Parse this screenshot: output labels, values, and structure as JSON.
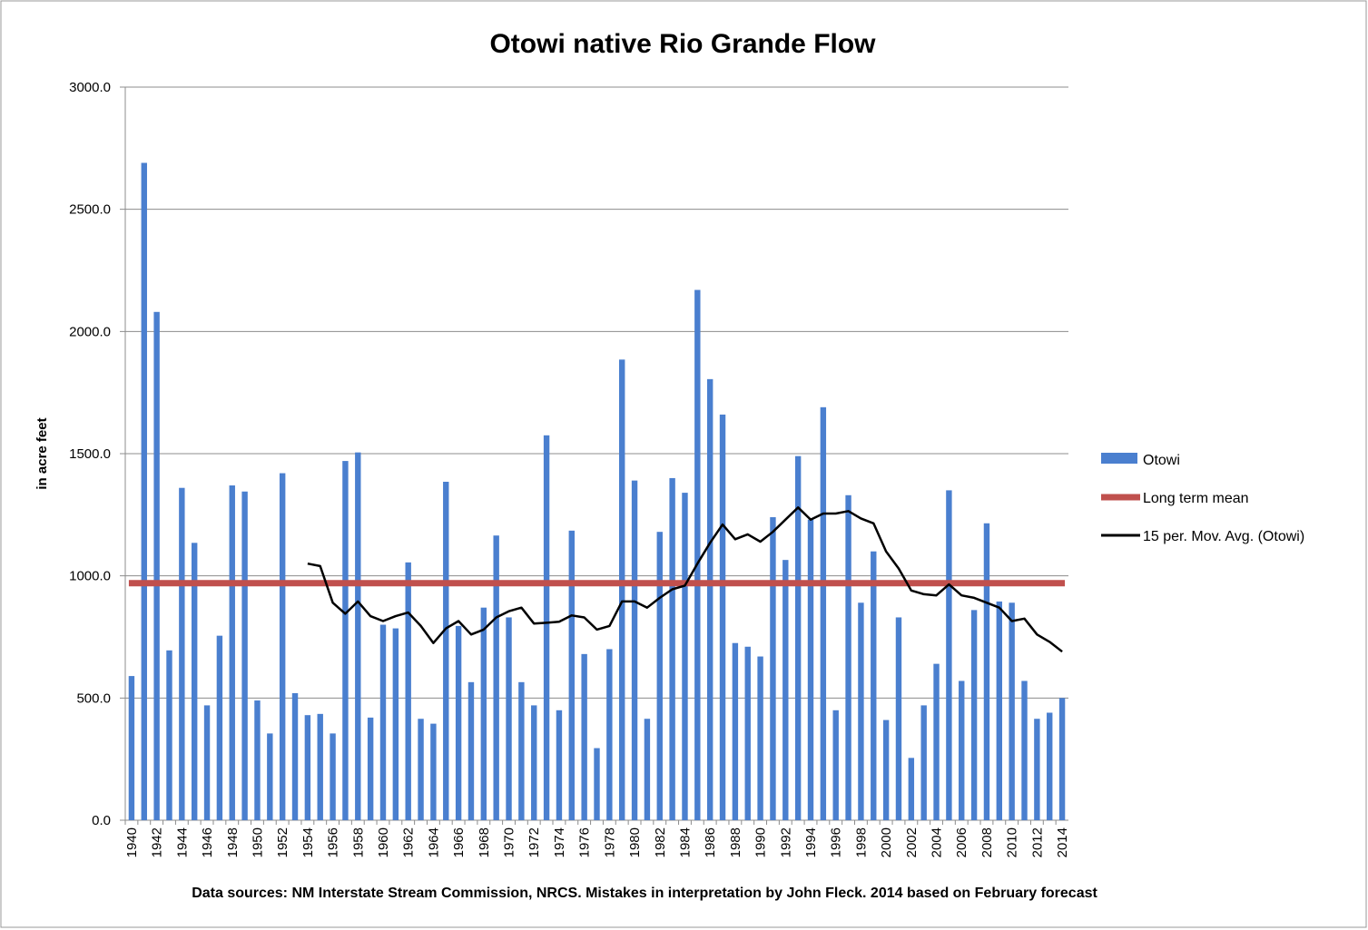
{
  "chart_data": {
    "type": "bar",
    "title": "Otowi native Rio Grande Flow",
    "ylabel": "in acre feet",
    "footnote": "Data sources: NM Interstate Stream Commission, NRCS. Mistakes in interpretation by John Fleck. 2014 based on February forecast",
    "categories": [
      "1940",
      null,
      "1942",
      null,
      "1944",
      null,
      "1946",
      null,
      "1948",
      null,
      "1950",
      null,
      "1952",
      null,
      "1954",
      null,
      "1956",
      null,
      "1958",
      null,
      "1960",
      null,
      "1962",
      null,
      "1964",
      null,
      "1966",
      null,
      "1968",
      null,
      "1970",
      null,
      "1972",
      null,
      "1974",
      null,
      "1976",
      null,
      "1978",
      null,
      "1980",
      null,
      "1982",
      null,
      "1984",
      null,
      "1986",
      null,
      "1988",
      null,
      "1990",
      null,
      "1992",
      null,
      "1994",
      null,
      "1996",
      null,
      "1998",
      null,
      "2000",
      null,
      "2002",
      null,
      "2004",
      null,
      "2006",
      null,
      "2008",
      null,
      "2010",
      null,
      "2012",
      null,
      "2014"
    ],
    "series": [
      {
        "name": "Otowi",
        "type": "bar",
        "color": "#4a7fcf",
        "values": [
          590,
          2690,
          2080,
          695,
          1360,
          1135,
          470,
          755,
          1370,
          1345,
          490,
          355,
          1420,
          520,
          430,
          435,
          355,
          1470,
          1505,
          420,
          800,
          785,
          1055,
          415,
          395,
          1385,
          795,
          565,
          870,
          1165,
          830,
          565,
          470,
          1575,
          450,
          1185,
          680,
          295,
          700,
          1885,
          1390,
          415,
          1180,
          1400,
          1340,
          2170,
          1805,
          1660,
          725,
          710,
          670,
          1240,
          1065,
          1490,
          1230,
          1690,
          450,
          1330,
          890,
          1100,
          410,
          830,
          255,
          470,
          640,
          1350,
          570,
          860,
          1215,
          895,
          890,
          570,
          415,
          440,
          500
        ]
      },
      {
        "name": "Long term mean",
        "type": "hline",
        "color": "#c0504d",
        "value": 970
      },
      {
        "name": "15 per. Mov. Avg. (Otowi)",
        "type": "line",
        "color": "#000000",
        "values": [
          null,
          null,
          null,
          null,
          null,
          null,
          null,
          null,
          null,
          null,
          null,
          null,
          null,
          null,
          1050,
          1040,
          890,
          845,
          895,
          835,
          815,
          835,
          850,
          795,
          725,
          785,
          815,
          760,
          780,
          830,
          855,
          870,
          805,
          808,
          812,
          838,
          830,
          780,
          795,
          895,
          895,
          870,
          910,
          945,
          960,
          1050,
          1135,
          1210,
          1150,
          1170,
          1140,
          1180,
          1230,
          1280,
          1230,
          1255,
          1255,
          1265,
          1235,
          1215,
          1100,
          1030,
          940,
          925,
          920,
          965,
          920,
          910,
          890,
          870,
          815,
          825,
          760,
          730,
          690
        ]
      }
    ],
    "ylim": [
      0,
      3000
    ],
    "yticks": [
      {
        "value": 0,
        "label": "0.0"
      },
      {
        "value": 500,
        "label": "500.0"
      },
      {
        "value": 1000,
        "label": "1000.0"
      },
      {
        "value": 1500,
        "label": "1500.0"
      },
      {
        "value": 2000,
        "label": "2000.0"
      },
      {
        "value": 2500,
        "label": "2500.0"
      },
      {
        "value": 3000,
        "label": "3000.0"
      }
    ],
    "grid": true,
    "legend": "right"
  }
}
